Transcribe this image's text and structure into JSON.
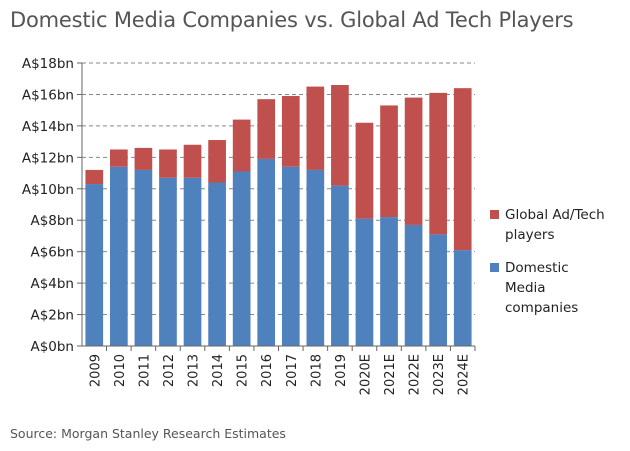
{
  "header": {
    "title": "Domestic Media Companies vs. Global Ad Tech Players"
  },
  "footer": {
    "source": "Source: Morgan Stanley Research Estimates"
  },
  "colors": {
    "global": "#C0504D",
    "domestic": "#4F81BD",
    "grid": "#888888"
  },
  "chart_data": {
    "type": "bar",
    "stacked": true,
    "categories": [
      "2009",
      "2010",
      "2011",
      "2012",
      "2013",
      "2014",
      "2015",
      "2016",
      "2017",
      "2018",
      "2019",
      "2020E",
      "2021E",
      "2022E",
      "2023E",
      "2024E"
    ],
    "series": [
      {
        "name": "Domestic Media companies",
        "values": [
          10.3,
          11.4,
          11.2,
          10.7,
          10.7,
          10.4,
          11.1,
          11.9,
          11.4,
          11.2,
          10.2,
          8.1,
          8.2,
          7.7,
          7.1,
          6.1
        ]
      },
      {
        "name": "Global Ad/Tech players",
        "values": [
          0.9,
          1.1,
          1.4,
          1.8,
          2.1,
          2.7,
          3.3,
          3.8,
          4.5,
          5.3,
          6.4,
          6.1,
          7.1,
          8.1,
          9.0,
          10.3
        ]
      }
    ],
    "yticks": [
      "A$0bn",
      "A$2bn",
      "A$4bn",
      "A$6bn",
      "A$8bn",
      "A$10bn",
      "A$12bn",
      "A$14bn",
      "A$16bn",
      "A$18bn"
    ],
    "ylim": [
      0,
      18
    ],
    "ystep": 2,
    "grid": true,
    "legend_position": "right"
  }
}
